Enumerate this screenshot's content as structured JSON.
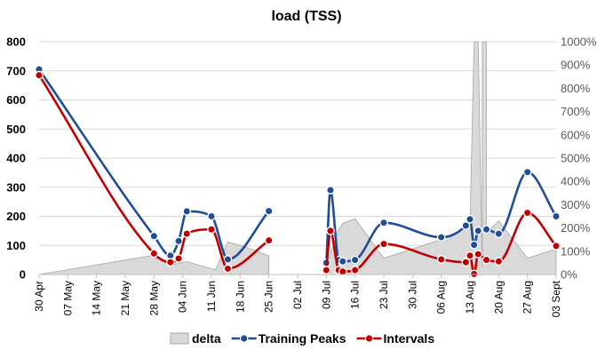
{
  "chart_data": {
    "type": "line",
    "title": "load (TSS)",
    "x_type": "date",
    "x_ticks": [
      {
        "date": "2024-04-30",
        "label": "30 Apr"
      },
      {
        "date": "2024-05-07",
        "label": "07 May"
      },
      {
        "date": "2024-05-14",
        "label": "14 May"
      },
      {
        "date": "2024-05-21",
        "label": "21 May"
      },
      {
        "date": "2024-05-28",
        "label": "28 May"
      },
      {
        "date": "2024-06-04",
        "label": "04 Jun"
      },
      {
        "date": "2024-06-11",
        "label": "11 Jun"
      },
      {
        "date": "2024-06-18",
        "label": "18 Jun"
      },
      {
        "date": "2024-06-25",
        "label": "25 Jun"
      },
      {
        "date": "2024-07-02",
        "label": "02 Jul"
      },
      {
        "date": "2024-07-09",
        "label": "09 Jul"
      },
      {
        "date": "2024-07-16",
        "label": "16 Jul"
      },
      {
        "date": "2024-07-23",
        "label": "23 Jul"
      },
      {
        "date": "2024-07-30",
        "label": "30 Jul"
      },
      {
        "date": "2024-08-06",
        "label": "06 Aug"
      },
      {
        "date": "2024-08-13",
        "label": "13 Aug"
      },
      {
        "date": "2024-08-20",
        "label": "20 Aug"
      },
      {
        "date": "2024-08-27",
        "label": "27 Aug"
      },
      {
        "date": "2024-09-03",
        "label": "03 Sept"
      }
    ],
    "x_range": [
      "2024-04-30",
      "2024-09-03"
    ],
    "y_left": {
      "min": 0,
      "max": 800,
      "ticks": [
        0,
        100,
        200,
        300,
        400,
        500,
        600,
        700,
        800
      ],
      "labels": [
        "0",
        "100",
        "200",
        "300",
        "400",
        "500",
        "600",
        "700",
        "800"
      ]
    },
    "y_right": {
      "min": 0,
      "max": 1000,
      "ticks": [
        0,
        100,
        200,
        300,
        400,
        500,
        600,
        700,
        800,
        900,
        1000
      ],
      "labels": [
        "0%",
        "100%",
        "200%",
        "300%",
        "400%",
        "500%",
        "600%",
        "700%",
        "800%",
        "900%",
        "1000%"
      ]
    },
    "grid": true,
    "legend_position": "bottom",
    "colors": {
      "delta_fill": "#d9d9d9",
      "delta_stroke": "#a6a6a6",
      "training_peaks": "#1f4e99",
      "intervals": "#c00000",
      "grid": "#d9d9d9"
    },
    "series": [
      {
        "name": "delta",
        "kind": "area",
        "axis": "right",
        "segments": [
          [
            {
              "x": "2024-04-30",
              "y": 0
            },
            {
              "x": "2024-05-27",
              "y": 80
            },
            {
              "x": "2024-05-31",
              "y": 55
            },
            {
              "x": "2024-06-01",
              "y": 40
            },
            {
              "x": "2024-06-05",
              "y": 55
            },
            {
              "x": "2024-06-08",
              "y": 40
            },
            {
              "x": "2024-06-12",
              "y": 20
            },
            {
              "x": "2024-06-15",
              "y": 140
            },
            {
              "x": "2024-06-19",
              "y": 120
            },
            {
              "x": "2024-06-25",
              "y": 80
            }
          ],
          [
            {
              "x": "2024-07-09",
              "y": 0
            },
            {
              "x": "2024-07-10",
              "y": 90
            },
            {
              "x": "2024-07-12",
              "y": 190
            },
            {
              "x": "2024-07-13",
              "y": 220
            },
            {
              "x": "2024-07-16",
              "y": 240
            },
            {
              "x": "2024-07-23",
              "y": 70
            },
            {
              "x": "2024-08-06",
              "y": 150
            },
            {
              "x": "2024-08-13",
              "y": 210
            },
            {
              "x": "2024-08-14",
              "y": 1000
            },
            {
              "x": "2024-08-15",
              "y": 1000
            },
            {
              "x": "2024-08-16",
              "y": 30
            },
            {
              "x": "2024-08-16",
              "y": 1000
            },
            {
              "x": "2024-08-17",
              "y": 1000
            },
            {
              "x": "2024-08-17",
              "y": 180
            },
            {
              "x": "2024-08-20",
              "y": 230
            },
            {
              "x": "2024-08-27",
              "y": 70
            },
            {
              "x": "2024-09-03",
              "y": 110
            }
          ]
        ]
      },
      {
        "name": "Training Peaks",
        "kind": "line",
        "axis": "left",
        "segments": [
          [
            {
              "x": "2024-04-30",
              "y": 705
            },
            {
              "x": "2024-05-28",
              "y": 132
            },
            {
              "x": "2024-06-01",
              "y": 65
            },
            {
              "x": "2024-06-03",
              "y": 115
            },
            {
              "x": "2024-06-05",
              "y": 217
            },
            {
              "x": "2024-06-11",
              "y": 200
            },
            {
              "x": "2024-06-15",
              "y": 52
            },
            {
              "x": "2024-06-25",
              "y": 218
            }
          ],
          [
            {
              "x": "2024-07-09",
              "y": 40
            },
            {
              "x": "2024-07-10",
              "y": 290
            },
            {
              "x": "2024-07-12",
              "y": 50
            },
            {
              "x": "2024-07-13",
              "y": 45
            },
            {
              "x": "2024-07-16",
              "y": 50
            },
            {
              "x": "2024-07-23",
              "y": 178
            },
            {
              "x": "2024-08-06",
              "y": 128
            },
            {
              "x": "2024-08-12",
              "y": 168
            },
            {
              "x": "2024-08-13",
              "y": 190
            },
            {
              "x": "2024-08-14",
              "y": 102
            },
            {
              "x": "2024-08-15",
              "y": 150
            },
            {
              "x": "2024-08-17",
              "y": 155
            },
            {
              "x": "2024-08-20",
              "y": 140
            },
            {
              "x": "2024-08-27",
              "y": 352
            },
            {
              "x": "2024-09-03",
              "y": 200
            }
          ]
        ]
      },
      {
        "name": "Intervals",
        "kind": "line",
        "axis": "left",
        "segments": [
          [
            {
              "x": "2024-04-30",
              "y": 685
            },
            {
              "x": "2024-05-28",
              "y": 72
            },
            {
              "x": "2024-06-01",
              "y": 42
            },
            {
              "x": "2024-06-03",
              "y": 55
            },
            {
              "x": "2024-06-05",
              "y": 140
            },
            {
              "x": "2024-06-11",
              "y": 155
            },
            {
              "x": "2024-06-15",
              "y": 20
            },
            {
              "x": "2024-06-25",
              "y": 117
            }
          ],
          [
            {
              "x": "2024-07-09",
              "y": 15
            },
            {
              "x": "2024-07-10",
              "y": 150
            },
            {
              "x": "2024-07-12",
              "y": 15
            },
            {
              "x": "2024-07-13",
              "y": 10
            },
            {
              "x": "2024-07-16",
              "y": 15
            },
            {
              "x": "2024-07-23",
              "y": 105
            },
            {
              "x": "2024-08-06",
              "y": 52
            },
            {
              "x": "2024-08-12",
              "y": 42
            },
            {
              "x": "2024-08-13",
              "y": 65
            },
            {
              "x": "2024-08-14",
              "y": 2
            },
            {
              "x": "2024-08-15",
              "y": 70
            },
            {
              "x": "2024-08-17",
              "y": 50
            },
            {
              "x": "2024-08-20",
              "y": 45
            },
            {
              "x": "2024-08-27",
              "y": 212
            },
            {
              "x": "2024-09-03",
              "y": 98
            }
          ]
        ]
      }
    ]
  }
}
